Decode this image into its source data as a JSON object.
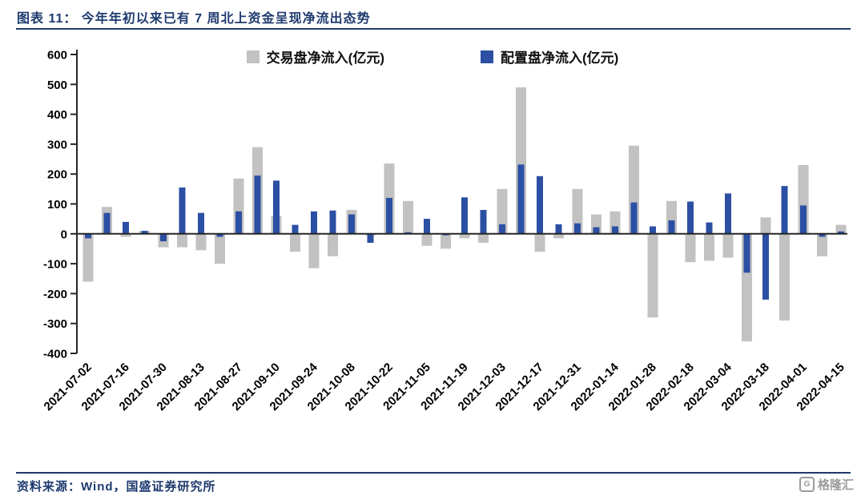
{
  "header": {
    "title": "图表 11： 今年年初以来已有 7 周北上资金呈现净流出态势"
  },
  "footer": {
    "source": "资料来源：Wind，国盛证券研究所",
    "watermark": "格隆汇",
    "watermark_icon": "G"
  },
  "colors": {
    "accent_navy": "#1e3a6e",
    "axis": "#262626",
    "trading_gray": "#c2c2c2",
    "allocation_blue": "#2b4fa3"
  },
  "chart_data": {
    "type": "bar",
    "bar_mode": "overlay",
    "title": "今年年初以来已有 7 周北上资金呈现净流出态势",
    "xlabel": "",
    "ylabel": "",
    "ylim": [
      -400,
      600
    ],
    "yticks": [
      600,
      500,
      400,
      300,
      200,
      100,
      0,
      -100,
      -200,
      -300,
      -400
    ],
    "grid": false,
    "legend_position": "top",
    "x_label_every": 2,
    "categories": [
      "2021-07-02",
      "2021-07-09",
      "2021-07-16",
      "2021-07-23",
      "2021-07-30",
      "2021-08-06",
      "2021-08-13",
      "2021-08-20",
      "2021-08-27",
      "2021-09-03",
      "2021-09-10",
      "2021-09-17",
      "2021-09-24",
      "2021-09-30",
      "2021-10-08",
      "2021-10-15",
      "2021-10-22",
      "2021-10-29",
      "2021-11-05",
      "2021-11-12",
      "2021-11-19",
      "2021-11-26",
      "2021-12-03",
      "2021-12-10",
      "2021-12-17",
      "2021-12-24",
      "2021-12-31",
      "2022-01-07",
      "2022-01-14",
      "2022-01-21",
      "2022-01-28",
      "2022-02-11",
      "2022-02-18",
      "2022-02-25",
      "2022-03-04",
      "2022-03-11",
      "2022-03-18",
      "2022-03-25",
      "2022-04-01",
      "2022-04-08",
      "2022-04-15"
    ],
    "series": [
      {
        "name": "交易盘净流入(亿元)",
        "color": "#c2c2c2",
        "values": [
          -160,
          90,
          -10,
          10,
          -45,
          -45,
          -55,
          -100,
          185,
          290,
          60,
          -60,
          -115,
          -75,
          80,
          -5,
          235,
          110,
          -40,
          -50,
          -15,
          -30,
          150,
          490,
          -60,
          -15,
          150,
          65,
          75,
          295,
          -280,
          110,
          -95,
          -90,
          -80,
          -360,
          55,
          -290,
          230,
          -75,
          30
        ]
      },
      {
        "name": "配置盘净流入(亿元)",
        "color": "#2b4fa3",
        "values": [
          -15,
          70,
          40,
          10,
          -25,
          155,
          70,
          -10,
          75,
          195,
          178,
          30,
          75,
          78,
          65,
          -30,
          120,
          5,
          50,
          -5,
          122,
          80,
          32,
          232,
          193,
          32,
          35,
          22,
          25,
          105,
          25,
          45,
          108,
          38,
          135,
          -130,
          -220,
          160,
          95,
          -10,
          8
        ]
      }
    ]
  }
}
